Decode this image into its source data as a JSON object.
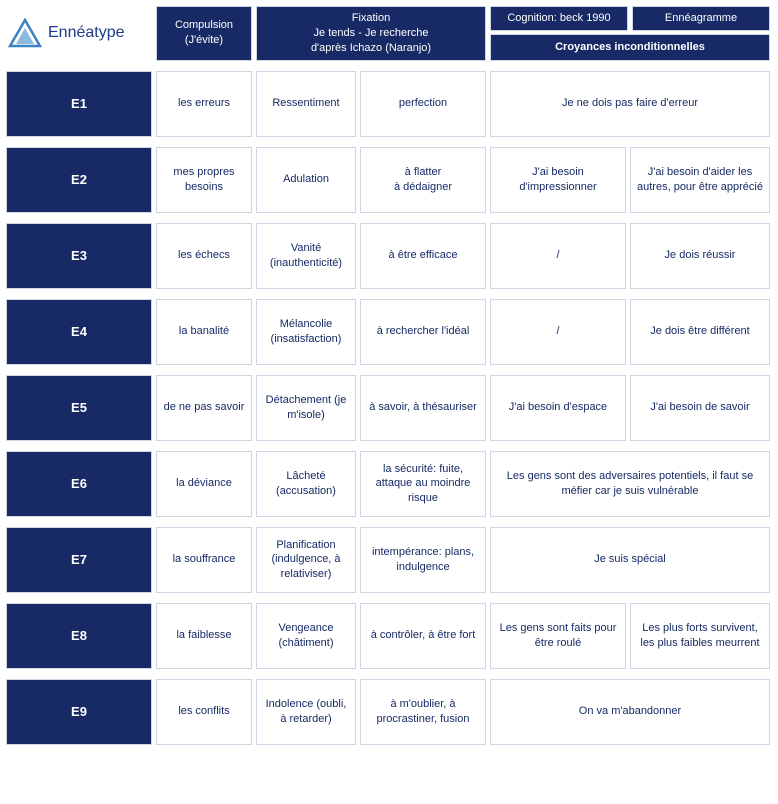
{
  "title": "Ennéatype",
  "colors": {
    "header_bg": "#172a65",
    "header_text": "#ffffff",
    "cell_bg": "#ffffff",
    "cell_text": "#172a65",
    "border": "#cfd6e4",
    "logo_stroke": "#3b82c4",
    "logo_fill": "#6fa8d8"
  },
  "headers": {
    "compulsion": "Compulsion\n(J'évite)",
    "fixation": "Fixation\nJe tends  -  Je recherche\nd'après Ichazo (Naranjo)",
    "cognition": "Cognition: beck 1990",
    "enneagramme": "Ennéagramme",
    "croyances": "Croyances inconditionnelles"
  },
  "rows": [
    {
      "type": "E1",
      "compulsion": "les erreurs",
      "fix1": "Ressentiment",
      "fix2": "perfection",
      "cog_merged": "Je ne dois pas faire d'erreur"
    },
    {
      "type": "E2",
      "compulsion": "mes propres besoins",
      "fix1": "Adulation",
      "fix2": "à flatter\nà dédaigner",
      "cog1": "J'ai besoin d'impressionner",
      "cog2": "J'ai besoin d'aider les autres, pour être apprécié"
    },
    {
      "type": "E3",
      "compulsion": "les échecs",
      "fix1": "Vanité (inauthenticité)",
      "fix2": "à être efficace",
      "cog1": "/",
      "cog2": "Je dois réussir"
    },
    {
      "type": "E4",
      "compulsion": "la banalité",
      "fix1": "Mélancolie (insatisfaction)",
      "fix2": "à rechercher l'idéal",
      "cog1": "/",
      "cog2": "Je dois être différent"
    },
    {
      "type": "E5",
      "compulsion": "de ne pas savoir",
      "fix1": "Détachement (je m'isole)",
      "fix2": "à savoir, à thésauriser",
      "cog1": "J'ai besoin d'espace",
      "cog2": "J'ai besoin de savoir"
    },
    {
      "type": "E6",
      "compulsion": "la déviance",
      "fix1": "Lâcheté (accusation)",
      "fix2": "la sécurité: fuite, attaque au moindre risque",
      "cog_merged": "Les gens sont des adversaires potentiels, il faut se méfier car je suis vulnérable"
    },
    {
      "type": "E7",
      "compulsion": "la souffrance",
      "fix1": "Planification (indulgence, à relativiser)",
      "fix2": "intempérance: plans, indulgence",
      "cog_merged": "Je suis spécial"
    },
    {
      "type": "E8",
      "compulsion": "la faiblesse",
      "fix1": "Vengeance (châtiment)",
      "fix2": "à contrôler, à être fort",
      "cog1": "Les gens sont faits pour être roulé",
      "cog2": "Les plus forts survivent, les plus faibles meurrent"
    },
    {
      "type": "E9",
      "compulsion": "les conflits",
      "fix1": "Indolence (oubli, à retarder)",
      "fix2": "à m'oublier, à procrastiner, fusion",
      "cog_merged": "On va m'abandonner"
    }
  ]
}
